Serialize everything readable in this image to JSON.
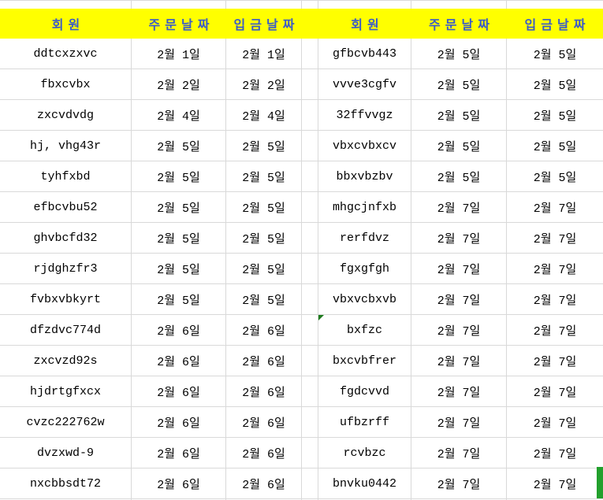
{
  "colors": {
    "header_bg": "#FFFF00",
    "header_text": "#3A5BC8",
    "gridline": "#D9D9D9",
    "cell_text": "#000000",
    "error_indicator": "#1E7B1E",
    "selection_green": "#22A02C"
  },
  "header": {
    "member": "회원",
    "order_date": "주문날짜",
    "deposit_date": "입금날짜"
  },
  "left_table": {
    "rows": [
      {
        "member": "ddtcxzxvc",
        "order": "2월 1일",
        "deposit": "2월 1일"
      },
      {
        "member": "fbxcvbx",
        "order": "2월 2일",
        "deposit": "2월 2일"
      },
      {
        "member": "zxcvdvdg",
        "order": "2월 4일",
        "deposit": "2월 4일"
      },
      {
        "member": "hj, vhg43r",
        "order": "2월 5일",
        "deposit": "2월 5일"
      },
      {
        "member": "tyhfxbd",
        "order": "2월 5일",
        "deposit": "2월 5일"
      },
      {
        "member": "efbcvbu52",
        "order": "2월 5일",
        "deposit": "2월 5일"
      },
      {
        "member": "ghvbcfd32",
        "order": "2월 5일",
        "deposit": "2월 5일"
      },
      {
        "member": "rjdghzfr3",
        "order": "2월 5일",
        "deposit": "2월 5일"
      },
      {
        "member": "fvbxvbkyrt",
        "order": "2월 5일",
        "deposit": "2월 5일"
      },
      {
        "member": "dfzdvc774d",
        "order": "2월 6일",
        "deposit": "2월 6일"
      },
      {
        "member": "zxcvzd92s",
        "order": "2월 6일",
        "deposit": "2월 6일"
      },
      {
        "member": "hjdrtgfxcx",
        "order": "2월 6일",
        "deposit": "2월 6일"
      },
      {
        "member": "cvzc222762w",
        "order": "2월 6일",
        "deposit": "2월 6일"
      },
      {
        "member": "dvzxwd-9",
        "order": "2월 6일",
        "deposit": "2월 6일"
      },
      {
        "member": "nxcbbsdt72",
        "order": "2월 6일",
        "deposit": "2월 6일"
      }
    ]
  },
  "right_table": {
    "rows": [
      {
        "member": "gfbcvb443",
        "order": "2월 5일",
        "deposit": "2월 5일"
      },
      {
        "member": "vvve3cgfv",
        "order": "2월 5일",
        "deposit": "2월 5일"
      },
      {
        "member": "32ffvvgz",
        "order": "2월 5일",
        "deposit": "2월 5일"
      },
      {
        "member": "vbxcvbxcv",
        "order": "2월 5일",
        "deposit": "2월 5일"
      },
      {
        "member": "bbxvbzbv",
        "order": "2월 5일",
        "deposit": "2월 5일"
      },
      {
        "member": "mhgcjnfxb",
        "order": "2월 7일",
        "deposit": "2월 7일"
      },
      {
        "member": "rerfdvz",
        "order": "2월 7일",
        "deposit": "2월 7일"
      },
      {
        "member": "fgxgfgh",
        "order": "2월 7일",
        "deposit": "2월 7일"
      },
      {
        "member": "vbxvcbxvb",
        "order": "2월 7일",
        "deposit": "2월 7일"
      },
      {
        "member": "bxfzc",
        "order": "2월 7일",
        "deposit": "2월 7일",
        "error_indicator": true
      },
      {
        "member": "bxcvbfrer",
        "order": "2월 7일",
        "deposit": "2월 7일"
      },
      {
        "member": "fgdcvvd",
        "order": "2월 7일",
        "deposit": "2월 7일"
      },
      {
        "member": "ufbzrff",
        "order": "2월 7일",
        "deposit": "2월 7일"
      },
      {
        "member": "rcvbzc",
        "order": "2월 7일",
        "deposit": "2월 7일"
      },
      {
        "member": "bnvku0442",
        "order": "2월 7일",
        "deposit": "2월 7일"
      }
    ]
  }
}
